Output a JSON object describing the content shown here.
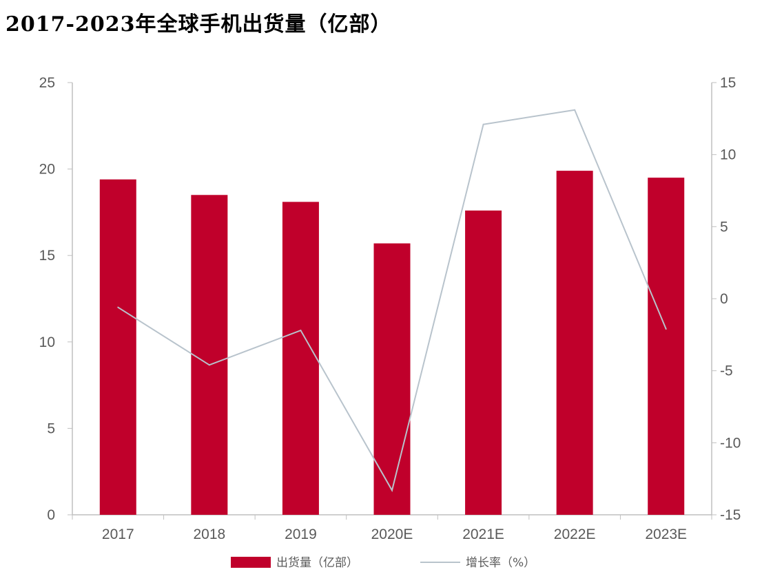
{
  "chart_data": {
    "type": "bar+line",
    "title": "2017-2023年全球手机出货量（亿部）",
    "categories": [
      "2017",
      "2018",
      "2019",
      "2020E",
      "2021E",
      "2022E",
      "2023E"
    ],
    "series": [
      {
        "name": "出货量（亿部）",
        "type": "bar",
        "axis": "left",
        "color": "#C0002B",
        "values": [
          19.4,
          18.5,
          18.1,
          15.7,
          17.6,
          19.9,
          19.5
        ]
      },
      {
        "name": "增长率（%）",
        "type": "line",
        "axis": "right",
        "color": "#B8C3CC",
        "values": [
          -0.6,
          -4.6,
          -2.2,
          -13.3,
          12.1,
          13.1,
          -2.1
        ]
      }
    ],
    "y_left": {
      "range": [
        0,
        25
      ],
      "ticks": [
        0,
        5,
        10,
        15,
        20,
        25
      ]
    },
    "y_right": {
      "range": [
        -15,
        15
      ],
      "ticks": [
        -15,
        -10,
        -5,
        0,
        5,
        10,
        15
      ]
    },
    "grid": false,
    "legend": "bottom"
  }
}
